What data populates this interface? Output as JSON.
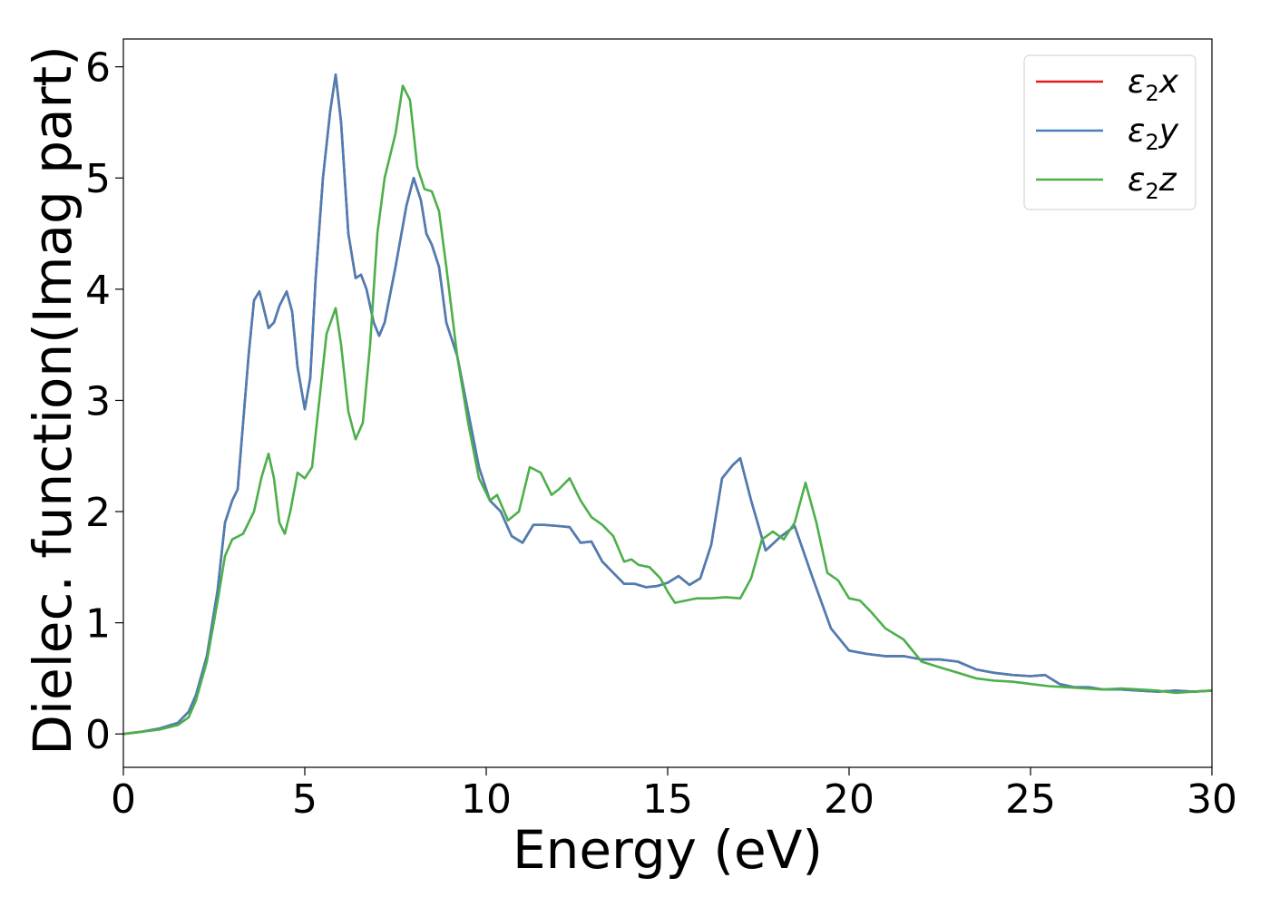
{
  "chart_data": {
    "type": "line",
    "xlabel": "Energy (eV)",
    "ylabel": "Dielec. function(Imag part)",
    "xlim": [
      0,
      30
    ],
    "ylim": [
      -0.3,
      6.25
    ],
    "xticks": [
      0,
      5,
      10,
      15,
      20,
      25,
      30
    ],
    "yticks": [
      0,
      1,
      2,
      3,
      4,
      5,
      6
    ],
    "grid": false,
    "legend_position": "top-right",
    "series": [
      {
        "name": "ε2x",
        "name_base": "ε",
        "name_sub": "2",
        "name_tail": "x",
        "color": "#e41a1c",
        "x": [
          0,
          0.5,
          1,
          1.5,
          1.8,
          2.0,
          2.3,
          2.6,
          2.8,
          3.0,
          3.15,
          3.3,
          3.45,
          3.6,
          3.75,
          3.85,
          4.0,
          4.15,
          4.3,
          4.5,
          4.65,
          4.8,
          5.0,
          5.15,
          5.3,
          5.5,
          5.7,
          5.85,
          6.0,
          6.2,
          6.4,
          6.55,
          6.7,
          6.9,
          7.05,
          7.2,
          7.5,
          7.8,
          8.0,
          8.2,
          8.35,
          8.5,
          8.7,
          8.9,
          9.2,
          9.5,
          9.8,
          10.1,
          10.4,
          10.7,
          11.0,
          11.3,
          11.6,
          12.0,
          12.3,
          12.6,
          12.9,
          13.2,
          13.5,
          13.8,
          14.1,
          14.4,
          14.7,
          15.0,
          15.3,
          15.6,
          15.9,
          16.2,
          16.5,
          16.8,
          17.0,
          17.3,
          17.7,
          18.1,
          18.5,
          19.0,
          19.5,
          20.0,
          20.5,
          21.0,
          21.5,
          22.0,
          22.5,
          23.0,
          23.5,
          24.0,
          24.5,
          25.0,
          25.4,
          25.8,
          26.2,
          26.6,
          27.0,
          27.5,
          28.0,
          28.5,
          29.0,
          29.5,
          30.0
        ],
        "values": [
          0,
          0.02,
          0.05,
          0.1,
          0.2,
          0.35,
          0.7,
          1.3,
          1.9,
          2.1,
          2.2,
          2.8,
          3.4,
          3.9,
          3.98,
          3.85,
          3.65,
          3.7,
          3.85,
          3.98,
          3.8,
          3.3,
          2.92,
          3.2,
          4.1,
          5.0,
          5.6,
          5.93,
          5.5,
          4.5,
          4.1,
          4.13,
          4.0,
          3.7,
          3.58,
          3.7,
          4.2,
          4.75,
          5.0,
          4.8,
          4.5,
          4.4,
          4.2,
          3.7,
          3.4,
          2.9,
          2.4,
          2.1,
          2.0,
          1.78,
          1.72,
          1.88,
          1.88,
          1.87,
          1.86,
          1.72,
          1.73,
          1.55,
          1.45,
          1.35,
          1.35,
          1.32,
          1.33,
          1.36,
          1.42,
          1.34,
          1.4,
          1.7,
          2.3,
          2.42,
          2.48,
          2.1,
          1.65,
          1.77,
          1.87,
          1.4,
          0.95,
          0.75,
          0.72,
          0.7,
          0.7,
          0.67,
          0.67,
          0.65,
          0.58,
          0.55,
          0.53,
          0.52,
          0.53,
          0.45,
          0.42,
          0.42,
          0.4,
          0.4,
          0.39,
          0.38,
          0.39,
          0.38,
          0.39
        ]
      },
      {
        "name": "ε2y",
        "name_base": "ε",
        "name_sub": "2",
        "name_tail": "y",
        "color": "#4a7fb5",
        "x": [
          0,
          0.5,
          1,
          1.5,
          1.8,
          2.0,
          2.3,
          2.6,
          2.8,
          3.0,
          3.15,
          3.3,
          3.45,
          3.6,
          3.75,
          3.85,
          4.0,
          4.15,
          4.3,
          4.5,
          4.65,
          4.8,
          5.0,
          5.15,
          5.3,
          5.5,
          5.7,
          5.85,
          6.0,
          6.2,
          6.4,
          6.55,
          6.7,
          6.9,
          7.05,
          7.2,
          7.5,
          7.8,
          8.0,
          8.2,
          8.35,
          8.5,
          8.7,
          8.9,
          9.2,
          9.5,
          9.8,
          10.1,
          10.4,
          10.7,
          11.0,
          11.3,
          11.6,
          12.0,
          12.3,
          12.6,
          12.9,
          13.2,
          13.5,
          13.8,
          14.1,
          14.4,
          14.7,
          15.0,
          15.3,
          15.6,
          15.9,
          16.2,
          16.5,
          16.8,
          17.0,
          17.3,
          17.7,
          18.1,
          18.5,
          19.0,
          19.5,
          20.0,
          20.5,
          21.0,
          21.5,
          22.0,
          22.5,
          23.0,
          23.5,
          24.0,
          24.5,
          25.0,
          25.4,
          25.8,
          26.2,
          26.6,
          27.0,
          27.5,
          28.0,
          28.5,
          29.0,
          29.5,
          30.0
        ],
        "values": [
          0,
          0.02,
          0.05,
          0.1,
          0.2,
          0.35,
          0.7,
          1.3,
          1.9,
          2.1,
          2.2,
          2.8,
          3.4,
          3.9,
          3.98,
          3.85,
          3.65,
          3.7,
          3.85,
          3.98,
          3.8,
          3.3,
          2.92,
          3.2,
          4.1,
          5.0,
          5.6,
          5.93,
          5.5,
          4.5,
          4.1,
          4.13,
          4.0,
          3.7,
          3.58,
          3.7,
          4.2,
          4.75,
          5.0,
          4.8,
          4.5,
          4.4,
          4.2,
          3.7,
          3.4,
          2.9,
          2.4,
          2.1,
          2.0,
          1.78,
          1.72,
          1.88,
          1.88,
          1.87,
          1.86,
          1.72,
          1.73,
          1.55,
          1.45,
          1.35,
          1.35,
          1.32,
          1.33,
          1.36,
          1.42,
          1.34,
          1.4,
          1.7,
          2.3,
          2.42,
          2.48,
          2.1,
          1.65,
          1.77,
          1.87,
          1.4,
          0.95,
          0.75,
          0.72,
          0.7,
          0.7,
          0.67,
          0.67,
          0.65,
          0.58,
          0.55,
          0.53,
          0.52,
          0.53,
          0.45,
          0.42,
          0.42,
          0.4,
          0.4,
          0.39,
          0.38,
          0.39,
          0.38,
          0.39
        ]
      },
      {
        "name": "ε2z",
        "name_base": "ε",
        "name_sub": "2",
        "name_tail": "z",
        "color": "#4daf4a",
        "x": [
          0,
          0.5,
          1,
          1.5,
          1.8,
          2.0,
          2.3,
          2.6,
          2.8,
          3.0,
          3.3,
          3.6,
          3.8,
          4.0,
          4.15,
          4.3,
          4.45,
          4.6,
          4.8,
          5.0,
          5.2,
          5.4,
          5.6,
          5.85,
          6.0,
          6.2,
          6.4,
          6.6,
          6.8,
          7.0,
          7.2,
          7.5,
          7.7,
          7.9,
          8.1,
          8.3,
          8.5,
          8.7,
          8.9,
          9.2,
          9.5,
          9.8,
          10.1,
          10.3,
          10.6,
          10.9,
          11.2,
          11.5,
          11.8,
          12.0,
          12.3,
          12.6,
          12.9,
          13.2,
          13.5,
          13.8,
          14.0,
          14.2,
          14.5,
          14.8,
          15.0,
          15.2,
          15.5,
          15.8,
          16.2,
          16.6,
          17.0,
          17.3,
          17.6,
          17.9,
          18.2,
          18.5,
          18.8,
          19.1,
          19.4,
          19.7,
          20.0,
          20.3,
          20.6,
          21.0,
          21.5,
          22.0,
          22.5,
          23.0,
          23.5,
          24.0,
          24.5,
          25.0,
          25.5,
          26.0,
          26.5,
          27.0,
          27.5,
          28.0,
          28.5,
          29.0,
          29.5,
          30.0
        ],
        "values": [
          0,
          0.02,
          0.04,
          0.08,
          0.15,
          0.3,
          0.65,
          1.2,
          1.6,
          1.75,
          1.8,
          2.0,
          2.3,
          2.52,
          2.3,
          1.9,
          1.8,
          2.0,
          2.35,
          2.3,
          2.4,
          3.0,
          3.6,
          3.83,
          3.5,
          2.9,
          2.65,
          2.8,
          3.5,
          4.5,
          5.0,
          5.4,
          5.83,
          5.7,
          5.1,
          4.9,
          4.88,
          4.7,
          4.2,
          3.4,
          2.8,
          2.3,
          2.1,
          2.15,
          1.92,
          2.0,
          2.4,
          2.35,
          2.15,
          2.2,
          2.3,
          2.1,
          1.95,
          1.88,
          1.78,
          1.55,
          1.57,
          1.52,
          1.5,
          1.4,
          1.28,
          1.18,
          1.2,
          1.22,
          1.22,
          1.23,
          1.22,
          1.4,
          1.75,
          1.82,
          1.75,
          1.9,
          2.26,
          1.9,
          1.45,
          1.38,
          1.22,
          1.2,
          1.1,
          0.95,
          0.85,
          0.65,
          0.6,
          0.55,
          0.5,
          0.48,
          0.47,
          0.45,
          0.43,
          0.42,
          0.41,
          0.4,
          0.41,
          0.4,
          0.39,
          0.37,
          0.38,
          0.39
        ]
      }
    ]
  }
}
